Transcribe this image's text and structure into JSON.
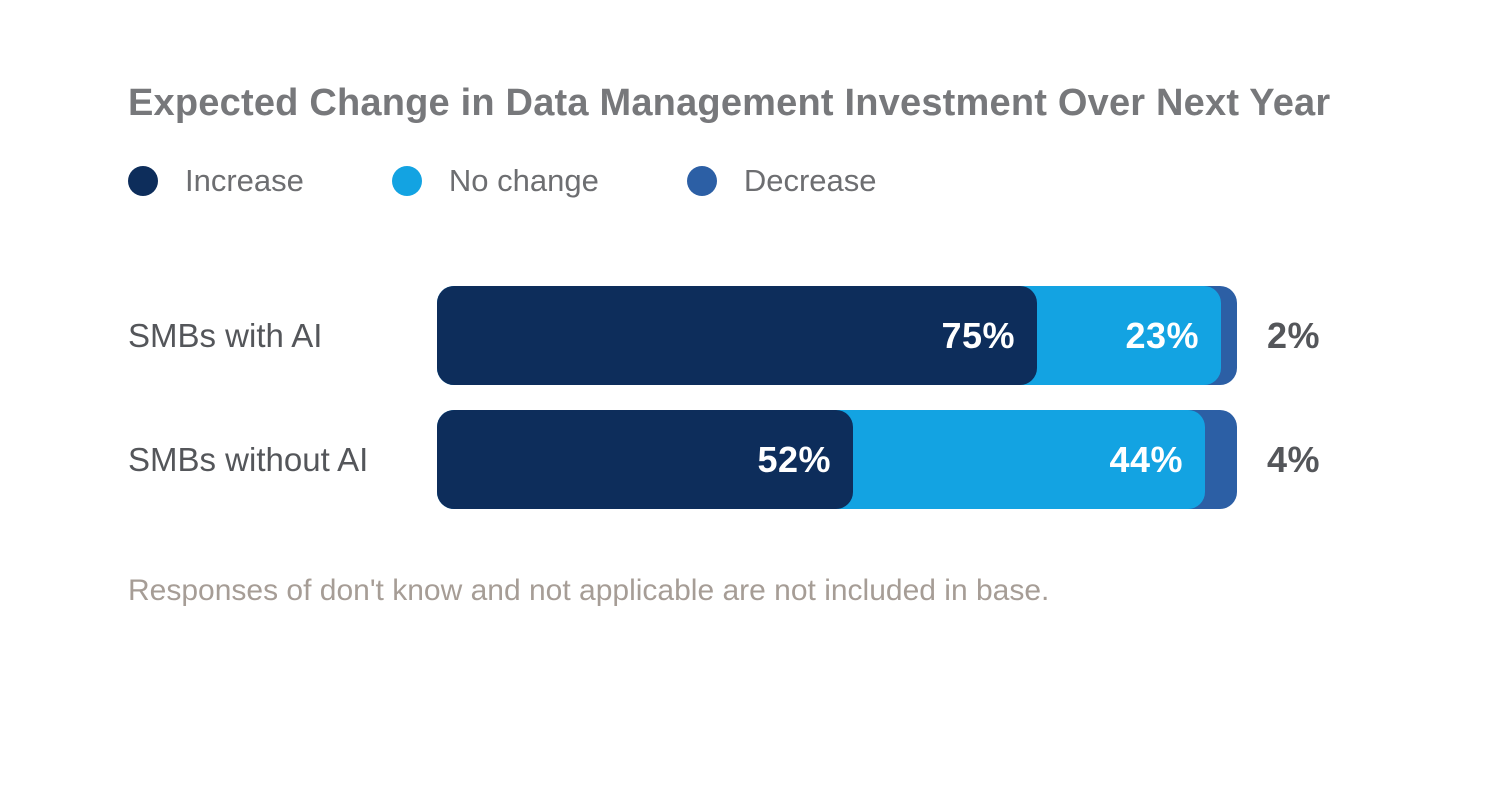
{
  "chart_data": {
    "type": "bar",
    "orientation": "horizontal",
    "stacked": true,
    "title": "Expected Change in Data Management Investment Over Next Year",
    "categories": [
      "SMBs with AI",
      "SMBs without AI"
    ],
    "series": [
      {
        "name": "Increase",
        "color": "#0D2D5B",
        "values": [
          75,
          52
        ]
      },
      {
        "name": "No change",
        "color": "#13A3E2",
        "values": [
          23,
          44
        ]
      },
      {
        "name": "Decrease",
        "color": "#2C5FA5",
        "values": [
          2,
          4
        ]
      }
    ],
    "value_suffix": "%",
    "xlim": [
      0,
      100
    ],
    "grid": false,
    "axes_visible": false,
    "legend_position": "top-left",
    "footnote": "Responses of don't know and not applicable are not included in base.",
    "last_series_label_position": "outside-right"
  },
  "colors": {
    "background": "#FFFFFF",
    "title_text": "#77787B",
    "legend_text": "#6D6E71",
    "category_text": "#54565A",
    "outside_value_text": "#54565A",
    "inside_value_text": "#FFFFFF",
    "footnote_text": "#A69D96"
  }
}
